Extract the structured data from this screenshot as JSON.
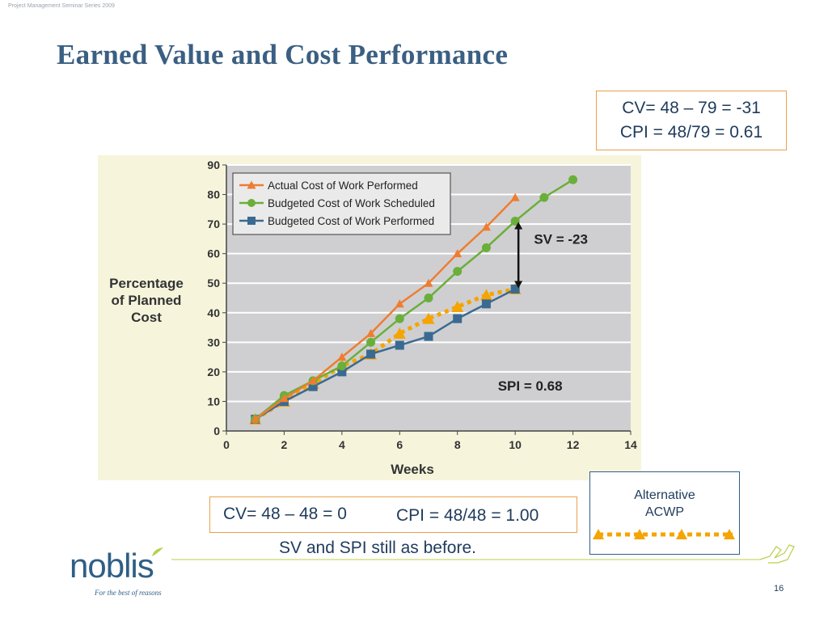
{
  "header": {
    "series_label": "Project Management Seminar Series 2009",
    "title": "Earned Value and Cost Performance"
  },
  "notes": {
    "top_line1": "CV= 48 – 79 = -31",
    "top_line2": "CPI = 48/79 = 0.61",
    "bottom_left": "CV= 48 – 48 = 0",
    "bottom_right": "CPI = 48/48 = 1.00",
    "footnote": "SV and SPI still as before."
  },
  "alternative_legend": {
    "line1": "Alternative",
    "line2": "ACWP",
    "color": "#f5a400"
  },
  "chart_data": {
    "type": "line",
    "ylabel": "Percentage of Planned Cost",
    "xlabel": "Weeks",
    "xlim": [
      0,
      14
    ],
    "ylim": [
      0,
      90
    ],
    "xticks": [
      0,
      2,
      4,
      6,
      8,
      10,
      12,
      14
    ],
    "yticks": [
      0,
      10,
      20,
      30,
      40,
      50,
      60,
      70,
      80,
      90
    ],
    "grid": true,
    "legend_position": "top-left",
    "series": [
      {
        "name": "Actual Cost of Work Performed",
        "color": "#ef7d2f",
        "marker": "triangle",
        "x": [
          1,
          2,
          3,
          4,
          5,
          6,
          7,
          8,
          9,
          10
        ],
        "y": [
          4,
          11,
          17,
          25,
          33,
          43,
          50,
          60,
          69,
          79
        ]
      },
      {
        "name": "Budgeted Cost of Work Scheduled",
        "color": "#6aaf3a",
        "marker": "circle",
        "x": [
          1,
          2,
          3,
          4,
          5,
          6,
          7,
          8,
          9,
          10,
          11,
          12
        ],
        "y": [
          4,
          12,
          17,
          22,
          30,
          38,
          45,
          54,
          62,
          71,
          79,
          85
        ]
      },
      {
        "name": "Budgeted Cost of Work Performed",
        "color": "#3a6a92",
        "marker": "square",
        "x": [
          1,
          2,
          3,
          4,
          5,
          6,
          7,
          8,
          9,
          10
        ],
        "y": [
          4,
          10,
          15,
          20,
          26,
          29,
          32,
          38,
          43,
          48
        ]
      },
      {
        "name": "",
        "color": "#f5a400",
        "marker": "triangle",
        "dashed": true,
        "x": [
          1,
          2,
          3,
          4,
          5,
          6,
          7,
          8,
          9,
          10
        ],
        "y": [
          4,
          10,
          16,
          22,
          26,
          33,
          38,
          42,
          46,
          48
        ]
      }
    ],
    "annotations": [
      {
        "text": "SV = -23"
      },
      {
        "text": "SPI = 0.68"
      }
    ]
  },
  "footer": {
    "logo_text": "noblis",
    "tagline": "For the best of reasons",
    "page_number": "16"
  },
  "colors": {
    "title": "#3a5f82",
    "note_border": "#e8a24a",
    "chart_bg": "#f6f5dc",
    "plot_bg": "#cfcfd1",
    "brand_green": "#b8cf4a"
  }
}
